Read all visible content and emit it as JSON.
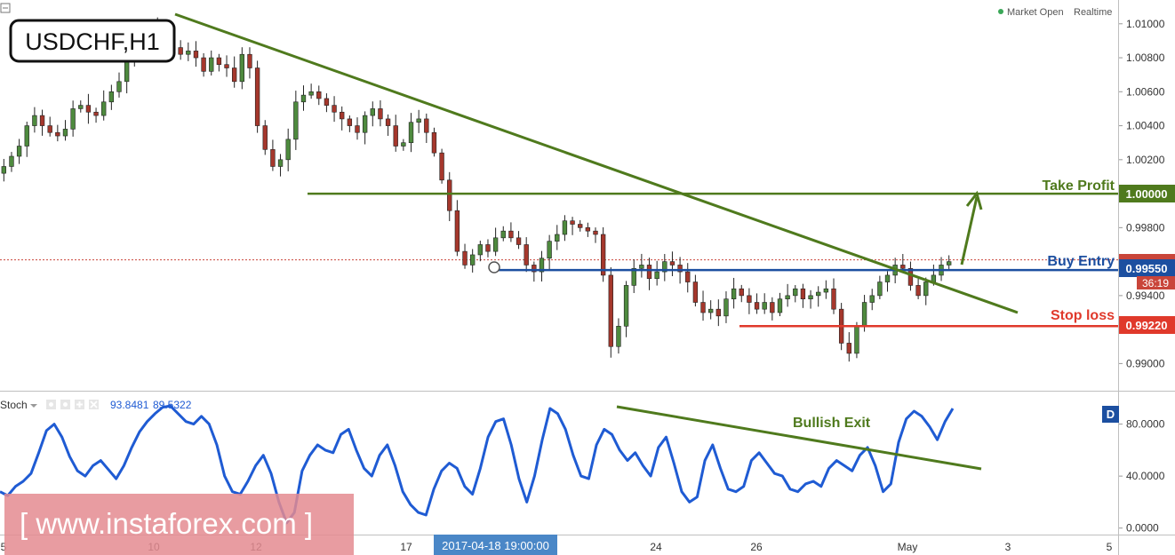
{
  "header": {
    "symbol_title": "USDCHF,H1",
    "market_status": "Market Open",
    "market_status_mode": "Realtime",
    "status_color": "#3aa757"
  },
  "colors": {
    "candle_up": "#4e8a3e",
    "candle_down": "#a5372c",
    "candle_wick": "#222222",
    "trend": "#4f7a1d",
    "buy_entry": "#1c4fa0",
    "stop_loss": "#e0392b",
    "take_profit_tag": "#4f7a1d",
    "price_tag": "#c9453a",
    "stoch_line": "#1f5bd3",
    "watermark_bg": "#e48b91"
  },
  "levels": {
    "take_profit": {
      "label": "Take Profit",
      "price_label": "1.00000"
    },
    "buy_entry": {
      "label": "Buy Entry",
      "price_label": "0.99550"
    },
    "stop_loss": {
      "label": "Stop loss",
      "price_label": "0.99220"
    },
    "countdown": "36:19"
  },
  "stoch": {
    "name": "Stoch",
    "value1": "93.8481",
    "value2": "89.5322",
    "annotation": "Bullish Exit",
    "badge": "D"
  },
  "watermark": "[  www.instaforex.com ]",
  "crosshair_time": "2017-04-18 19:00:00",
  "chart_data": {
    "type": "candlestick",
    "price_axis_ticks": [
      "1.01000",
      "1.00800",
      "1.00600",
      "1.00400",
      "1.00200",
      "1.00000",
      "0.99800",
      "0.99600",
      "0.99400",
      "0.99200",
      "0.99000"
    ],
    "price_ylim": [
      0.9884,
      1.0114
    ],
    "stoch_axis_ticks": [
      "80.0000",
      "40.0000",
      "0.0000"
    ],
    "stoch_ylim": [
      -5,
      105
    ],
    "x_tick_labels": [
      "5",
      "10",
      "12",
      "17",
      "24",
      "26",
      "May",
      "3",
      "5"
    ],
    "price_series": [
      1.0016,
      1.0022,
      1.0028,
      1.004,
      1.0046,
      1.004,
      1.0036,
      1.0034,
      1.0038,
      1.005,
      1.0052,
      1.0048,
      1.0046,
      1.0054,
      1.006,
      1.0066,
      1.0078,
      1.0088,
      1.0096,
      1.01,
      1.01,
      1.0092,
      1.0086,
      1.0082,
      1.0084,
      1.008,
      1.0072,
      1.008,
      1.0076,
      1.0074,
      1.0066,
      1.0082,
      1.0074,
      1.004,
      1.0026,
      1.0016,
      1.002,
      1.0032,
      1.0054,
      1.0058,
      1.006,
      1.0056,
      1.0052,
      1.0048,
      1.0044,
      1.004,
      1.0036,
      1.0046,
      1.005,
      1.0044,
      1.004,
      1.0028,
      1.003,
      1.0042,
      1.0044,
      1.0036,
      1.0024,
      1.0008,
      0.999,
      0.9966,
      0.9958,
      0.9964,
      0.997,
      0.9966,
      0.9974,
      0.9978,
      0.9974,
      0.997,
      0.9958,
      0.9954,
      0.9962,
      0.9972,
      0.9976,
      0.9984,
      0.9982,
      0.998,
      0.9978,
      0.9976,
      0.9952,
      0.991,
      0.9922,
      0.9946,
      0.9956,
      0.9958,
      0.995,
      0.9954,
      0.996,
      0.9958,
      0.9954,
      0.9948,
      0.9936,
      0.993,
      0.9932,
      0.9928,
      0.9938,
      0.9944,
      0.994,
      0.9936,
      0.9932,
      0.9936,
      0.993,
      0.9938,
      0.994,
      0.9944,
      0.9938,
      0.994,
      0.9942,
      0.9944,
      0.9932,
      0.9912,
      0.9906,
      0.9922,
      0.9936,
      0.994,
      0.9948,
      0.9952,
      0.9958,
      0.9956,
      0.9946,
      0.994,
      0.9948,
      0.9952,
      0.9958,
      0.996
    ],
    "stoch_series": [
      28,
      25,
      32,
      36,
      42,
      58,
      75,
      80,
      70,
      55,
      44,
      40,
      48,
      52,
      45,
      38,
      48,
      62,
      74,
      82,
      88,
      93,
      94,
      88,
      82,
      80,
      86,
      80,
      64,
      40,
      28,
      26,
      36,
      48,
      56,
      42,
      20,
      4,
      12,
      44,
      56,
      64,
      60,
      58,
      72,
      76,
      60,
      46,
      40,
      56,
      64,
      48,
      28,
      18,
      12,
      10,
      30,
      44,
      50,
      46,
      32,
      26,
      46,
      70,
      82,
      84,
      64,
      38,
      20,
      40,
      68,
      92,
      88,
      76,
      56,
      40,
      38,
      64,
      76,
      72,
      60,
      52,
      58,
      48,
      40,
      62,
      70,
      50,
      28,
      20,
      24,
      52,
      64,
      46,
      30,
      28,
      32,
      52,
      58,
      50,
      42,
      40,
      30,
      28,
      34,
      36,
      32,
      46,
      52,
      48,
      44,
      56,
      62,
      48,
      28,
      34,
      66,
      84,
      90,
      86,
      78,
      68,
      82,
      92
    ]
  }
}
